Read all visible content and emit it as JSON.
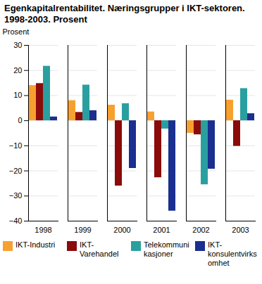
{
  "chart_data": {
    "type": "bar",
    "title": "Egenkapitalrentabilitet. Næringsgrupper i IKT-sektoren. 1998-2003. Prosent",
    "ylabel": "Prosent",
    "categories": [
      "1998",
      "1999",
      "2000",
      "2001",
      "2002",
      "2003"
    ],
    "series": [
      {
        "name": "IKT-Industri",
        "color": "#f7a030",
        "values": [
          14,
          8,
          6.2,
          3.5,
          -5,
          8.2
        ]
      },
      {
        "name": "IKT-Varehandel",
        "color": "#8b0a0a",
        "values": [
          14.8,
          3.3,
          -26,
          -22.7,
          -5.6,
          -10.2
        ]
      },
      {
        "name": "Telekommunikasjoner",
        "color": "#2a9fa0",
        "values": [
          21.7,
          14.2,
          6.8,
          -3.3,
          -25.5,
          12.8
        ]
      },
      {
        "name": "IKT-konsulentvirksomhet",
        "color": "#1a2f8f",
        "values": [
          1.5,
          4,
          -19,
          -36,
          -19.3,
          2.8
        ]
      }
    ],
    "ylim": [
      -40,
      30
    ],
    "yticks": [
      -40,
      -30,
      -20,
      -10,
      0,
      10,
      20,
      30
    ],
    "grid": true,
    "legend": "bottom"
  }
}
